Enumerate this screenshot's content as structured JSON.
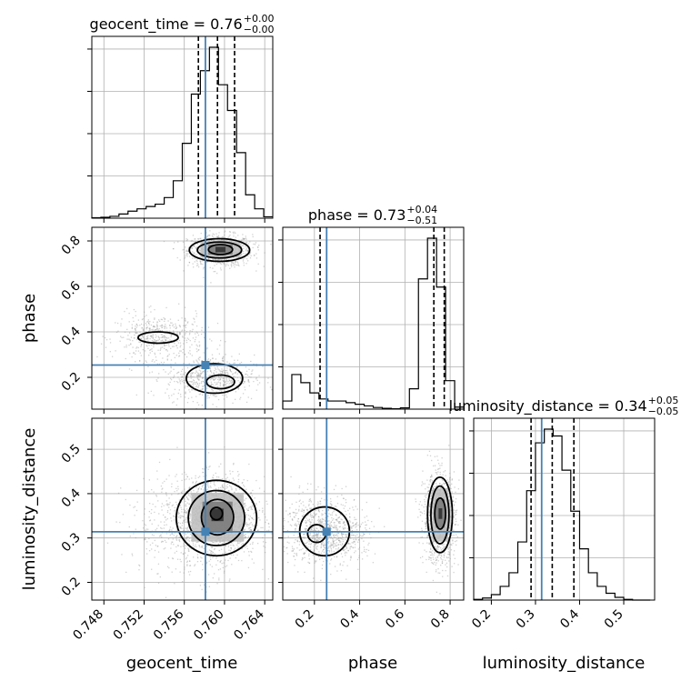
{
  "chart_data": {
    "type": "corner",
    "parameters": [
      "geocent_time",
      "phase",
      "luminosity_distance"
    ],
    "axis_labels": {
      "geocent_time": "geocent_time",
      "phase": "phase",
      "luminosity_distance": "luminosity_distance"
    },
    "titles": [
      {
        "param": "geocent_time",
        "name": "geocent_time",
        "value": "0.76",
        "plus": "+0.00",
        "minus": "−0.00"
      },
      {
        "param": "phase",
        "name": "phase",
        "value": "0.73",
        "plus": "+0.04",
        "minus": "−0.51"
      },
      {
        "param": "luminosity_distance",
        "name": "luminosity_distance",
        "value": "0.34",
        "plus": "+0.05",
        "minus": "−0.05"
      }
    ],
    "ranges": {
      "geocent_time": [
        0.7468,
        0.7648
      ],
      "phase": [
        0.06,
        0.86
      ],
      "luminosity_distance": [
        0.16,
        0.57
      ]
    },
    "ticks": {
      "geocent_time": [
        0.748,
        0.752,
        0.756,
        0.76,
        0.764
      ],
      "geocent_time_labels": [
        "0.748",
        "0.752",
        "0.756",
        "0.760",
        "0.764"
      ],
      "phase": [
        0.2,
        0.4,
        0.6,
        0.8
      ],
      "phase_labels": [
        "0.2",
        "0.4",
        "0.6",
        "0.8"
      ],
      "luminosity_distance": [
        0.2,
        0.3,
        0.4,
        0.5
      ],
      "luminosity_distance_labels": [
        "0.2",
        "0.3",
        "0.4",
        "0.5"
      ]
    },
    "injection": {
      "geocent_time": 0.7581,
      "phase": 0.254,
      "luminosity_distance": 0.314
    },
    "quantiles": {
      "geocent_time": [
        0.7574,
        0.7593,
        0.761
      ],
      "phase": [
        0.225,
        0.728,
        0.774
      ],
      "luminosity_distance": [
        0.29,
        0.338,
        0.387
      ]
    },
    "histograms": {
      "geocent_time": {
        "edges": [
          0.7468,
          0.7477,
          0.7486,
          0.7495,
          0.7504,
          0.7513,
          0.7522,
          0.7531,
          0.754,
          0.7549,
          0.7558,
          0.7567,
          0.7576,
          0.7585,
          0.7594,
          0.7603,
          0.7612,
          0.7621,
          0.763,
          0.7639,
          0.7648
        ],
        "counts": [
          1,
          2,
          4,
          9,
          15,
          20,
          25,
          30,
          44,
          80,
          160,
          265,
          315,
          365,
          285,
          230,
          140,
          50,
          20,
          3
        ]
      },
      "phase": {
        "edges": [
          0.06,
          0.1,
          0.14,
          0.18,
          0.22,
          0.26,
          0.3,
          0.34,
          0.38,
          0.42,
          0.46,
          0.5,
          0.54,
          0.58,
          0.62,
          0.66,
          0.7,
          0.74,
          0.78,
          0.82,
          0.86
        ],
        "counts": [
          20,
          85,
          65,
          40,
          25,
          20,
          20,
          16,
          12,
          8,
          4,
          2,
          1,
          3,
          50,
          320,
          420,
          300,
          70,
          5
        ]
      },
      "luminosity_distance": {
        "edges": [
          0.16,
          0.18,
          0.2,
          0.22,
          0.24,
          0.26,
          0.28,
          0.3,
          0.32,
          0.34,
          0.36,
          0.38,
          0.4,
          0.42,
          0.44,
          0.46,
          0.48,
          0.5,
          0.52,
          0.54,
          0.56
        ],
        "counts": [
          1,
          3,
          8,
          20,
          40,
          85,
          160,
          230,
          250,
          240,
          190,
          130,
          75,
          40,
          20,
          10,
          4,
          1,
          0,
          0
        ]
      }
    },
    "grid": true,
    "colors": {
      "injection": "#4682b4",
      "histogram": "#000000",
      "grid": "#b0b0b0",
      "scatter": "#9a9a9a",
      "density_dark": "#2a2a2a",
      "density_mid": "#777777",
      "density_light": "#bdbdbd"
    }
  }
}
